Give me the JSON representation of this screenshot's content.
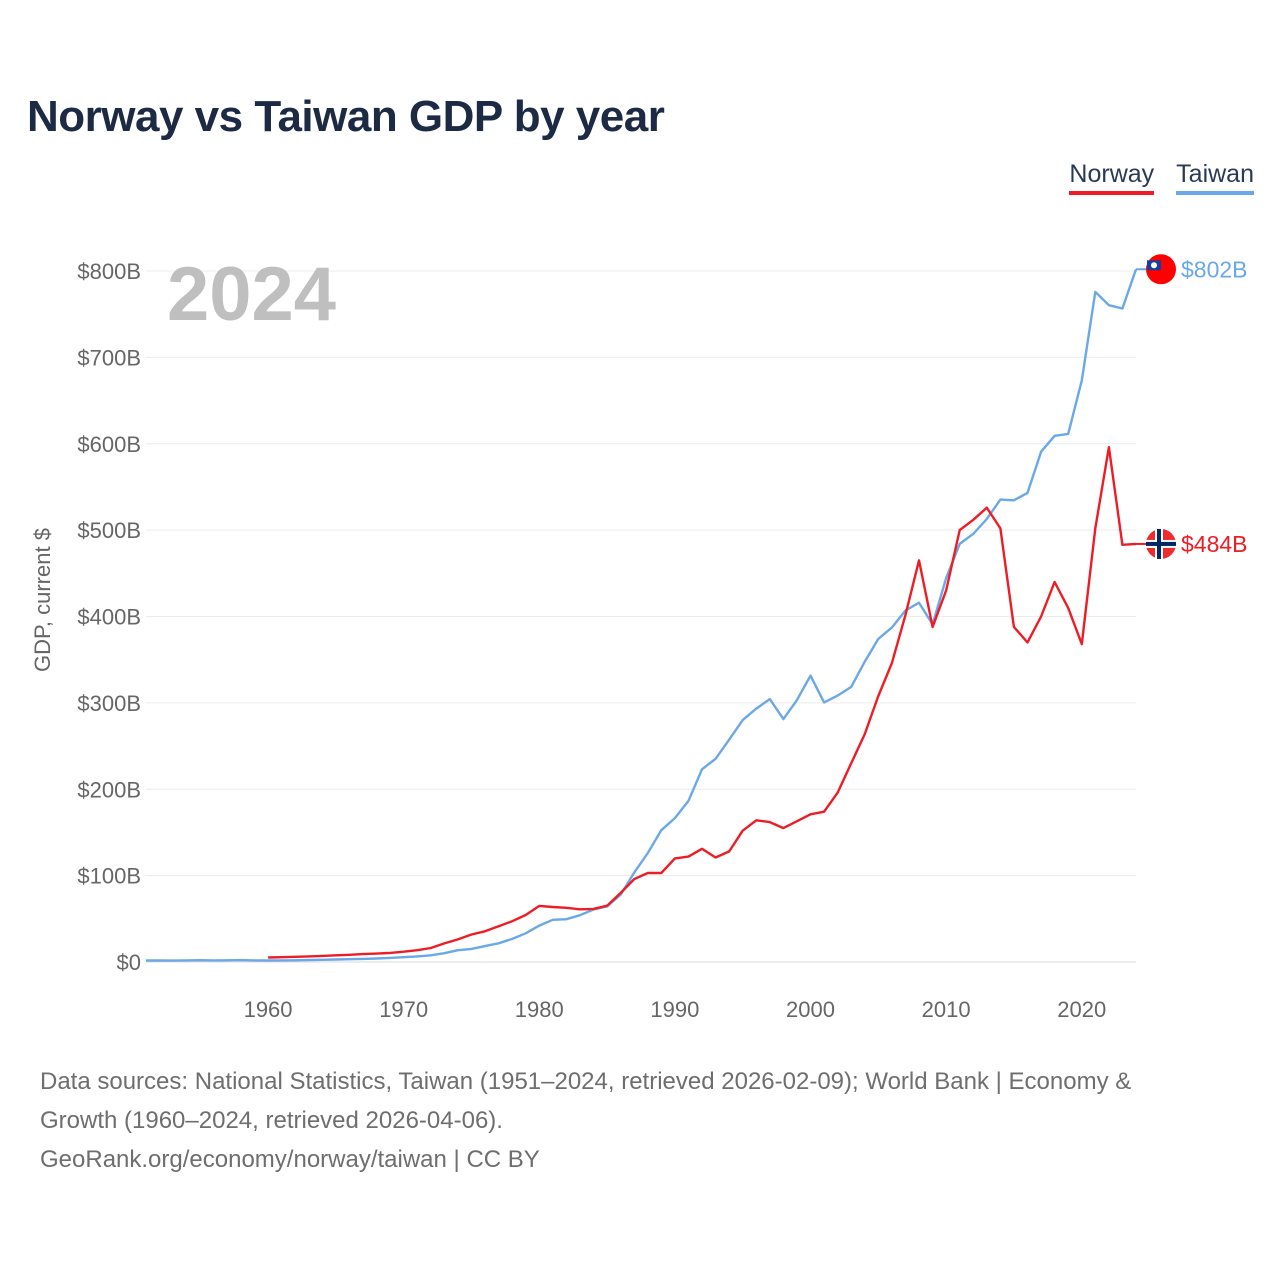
{
  "header": {
    "title": "Norway vs Taiwan GDP by year"
  },
  "legend": [
    {
      "name": "Norway",
      "color": "#ee1c25"
    },
    {
      "name": "Taiwan",
      "color": "#6aa8e8"
    }
  ],
  "footer": {
    "line1": "Data sources: National Statistics, Taiwan (1951–2024, retrieved 2026-02-09); World Bank | Economy &",
    "line2": "Growth (1960–2024, retrieved 2026-04-06).",
    "line3": "GeoRank.org/economy/norway/taiwan | CC BY"
  },
  "chart_data": {
    "type": "line",
    "title": "Norway vs Taiwan GDP by year",
    "year_label": "2024",
    "xlabel": "",
    "ylabel": "GDP, current $",
    "xlim": [
      1951,
      2024
    ],
    "ylim": [
      0,
      800
    ],
    "y_unit": "billions USD",
    "x_ticks": [
      1960,
      1970,
      1980,
      1990,
      2000,
      2010,
      2020
    ],
    "y_ticks": [
      0,
      100,
      200,
      300,
      400,
      500,
      600,
      700,
      800
    ],
    "y_tick_labels": [
      "$0",
      "$100B",
      "$200B",
      "$300B",
      "$400B",
      "$500B",
      "$600B",
      "$700B",
      "$800B"
    ],
    "grid": true,
    "series": [
      {
        "name": "Taiwan",
        "color": "#6aa8e8",
        "end_label": "$802B",
        "flag_icon": "taiwan-flag-icon",
        "x": [
          1951,
          1952,
          1953,
          1954,
          1955,
          1956,
          1957,
          1958,
          1959,
          1960,
          1961,
          1962,
          1963,
          1964,
          1965,
          1966,
          1967,
          1968,
          1969,
          1970,
          1971,
          1972,
          1973,
          1974,
          1975,
          1976,
          1977,
          1978,
          1979,
          1980,
          1981,
          1982,
          1983,
          1984,
          1985,
          1986,
          1987,
          1988,
          1989,
          1990,
          1991,
          1992,
          1993,
          1994,
          1995,
          1996,
          1997,
          1998,
          1999,
          2000,
          2001,
          2002,
          2003,
          2004,
          2005,
          2006,
          2007,
          2008,
          2009,
          2010,
          2011,
          2012,
          2013,
          2014,
          2015,
          2016,
          2017,
          2018,
          2019,
          2020,
          2021,
          2022,
          2023,
          2024
        ],
        "values": [
          1.7,
          1.8,
          1.6,
          1.9,
          2.1,
          1.8,
          2.0,
          2.2,
          1.9,
          1.7,
          1.8,
          2.0,
          2.3,
          2.6,
          2.9,
          3.2,
          3.6,
          4.1,
          4.8,
          5.6,
          6.5,
          7.8,
          10.2,
          13.7,
          15.2,
          18.4,
          21.7,
          26.8,
          33.2,
          42.1,
          48.9,
          49.6,
          54.2,
          60.8,
          64.3,
          78.0,
          103.5,
          126.2,
          152.6,
          166.6,
          186.6,
          223.1,
          235.3,
          257.5,
          280.1,
          293.4,
          304.4,
          281.2,
          303.5,
          331.5,
          300.5,
          308.4,
          318.5,
          347.8,
          374.1,
          387.3,
          406.9,
          416.0,
          390.8,
          444.3,
          484.0,
          495.8,
          512.9,
          535.3,
          534.5,
          543.1,
          590.8,
          609.2,
          611.4,
          673.3,
          775.8,
          760.4,
          756.6,
          802.0
        ]
      },
      {
        "name": "Norway",
        "color": "#ee1c25",
        "end_label": "$484B",
        "flag_icon": "norway-flag-icon",
        "x": [
          1960,
          1961,
          1962,
          1963,
          1964,
          1965,
          1966,
          1967,
          1968,
          1969,
          1970,
          1971,
          1972,
          1973,
          1974,
          1975,
          1976,
          1977,
          1978,
          1979,
          1980,
          1981,
          1982,
          1983,
          1984,
          1985,
          1986,
          1987,
          1988,
          1989,
          1990,
          1991,
          1992,
          1993,
          1994,
          1995,
          1996,
          1997,
          1998,
          1999,
          2000,
          2001,
          2002,
          2003,
          2004,
          2005,
          2006,
          2007,
          2008,
          2009,
          2010,
          2011,
          2012,
          2013,
          2014,
          2015,
          2016,
          2017,
          2018,
          2019,
          2020,
          2021,
          2022,
          2023,
          2024
        ],
        "values": [
          5.2,
          5.6,
          6.0,
          6.5,
          7.1,
          7.7,
          8.3,
          9.1,
          9.7,
          10.5,
          11.9,
          13.7,
          16.2,
          21.5,
          26.2,
          31.8,
          35.5,
          41.3,
          47.2,
          54.4,
          65.0,
          63.7,
          62.7,
          61.0,
          61.5,
          65.2,
          80.0,
          96.0,
          103.0,
          103.0,
          120.0,
          122.0,
          131.0,
          121.0,
          128.0,
          152.0,
          164.0,
          162.0,
          155.0,
          163.0,
          171.0,
          174.0,
          196.0,
          230.0,
          264.0,
          308.0,
          346.0,
          402.0,
          465.0,
          388.0,
          430.0,
          500.0,
          512.0,
          526.0,
          502.0,
          388.0,
          370.0,
          400.0,
          440.0,
          410.0,
          368.0,
          502.0,
          596.0,
          483.0,
          484.0
        ]
      }
    ]
  }
}
